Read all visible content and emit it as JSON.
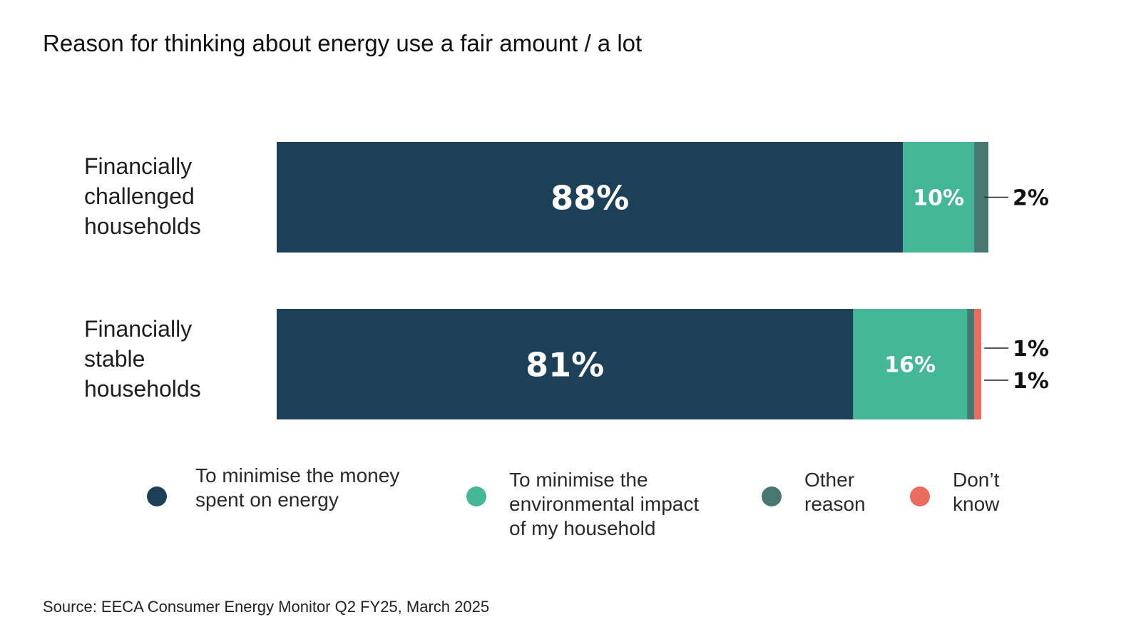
{
  "chart_data": {
    "type": "bar",
    "orientation": "horizontal",
    "stacked": true,
    "title": "Reason for thinking about energy use a fair amount / a lot",
    "categories": [
      "Financially challenged households",
      "Financially stable households"
    ],
    "category_labels": [
      "Financially\nchallenged\nhouseholds",
      "Financially\nstable\nhouseholds"
    ],
    "series": [
      {
        "name": "To minimise the money spent on energy",
        "legend_label": "To minimise the money\nspent on energy",
        "color": "#1b4057",
        "values": [
          88,
          81
        ],
        "labels": [
          "88%",
          "81%"
        ]
      },
      {
        "name": "To minimise the environmental impact of my household",
        "legend_label": "To minimise the\nenvironmental impact\nof my household",
        "color": "#44b797",
        "values": [
          10,
          16
        ],
        "labels": [
          "10%",
          "16%"
        ]
      },
      {
        "name": "Other reason",
        "legend_label": "Other\nreason",
        "color": "#467871",
        "values": [
          2,
          1
        ],
        "labels": [
          "2%",
          "1%"
        ]
      },
      {
        "name": "Don’t know",
        "legend_label": "Don’t\nknow",
        "color": "#ec6b5f",
        "values": [
          0,
          1
        ],
        "labels": [
          "",
          "1%"
        ]
      }
    ],
    "xlim": [
      0,
      100
    ],
    "grid": false,
    "legend_position": "bottom"
  },
  "source": "Source: EECA Consumer Energy Monitor Q2 FY25, March 2025"
}
